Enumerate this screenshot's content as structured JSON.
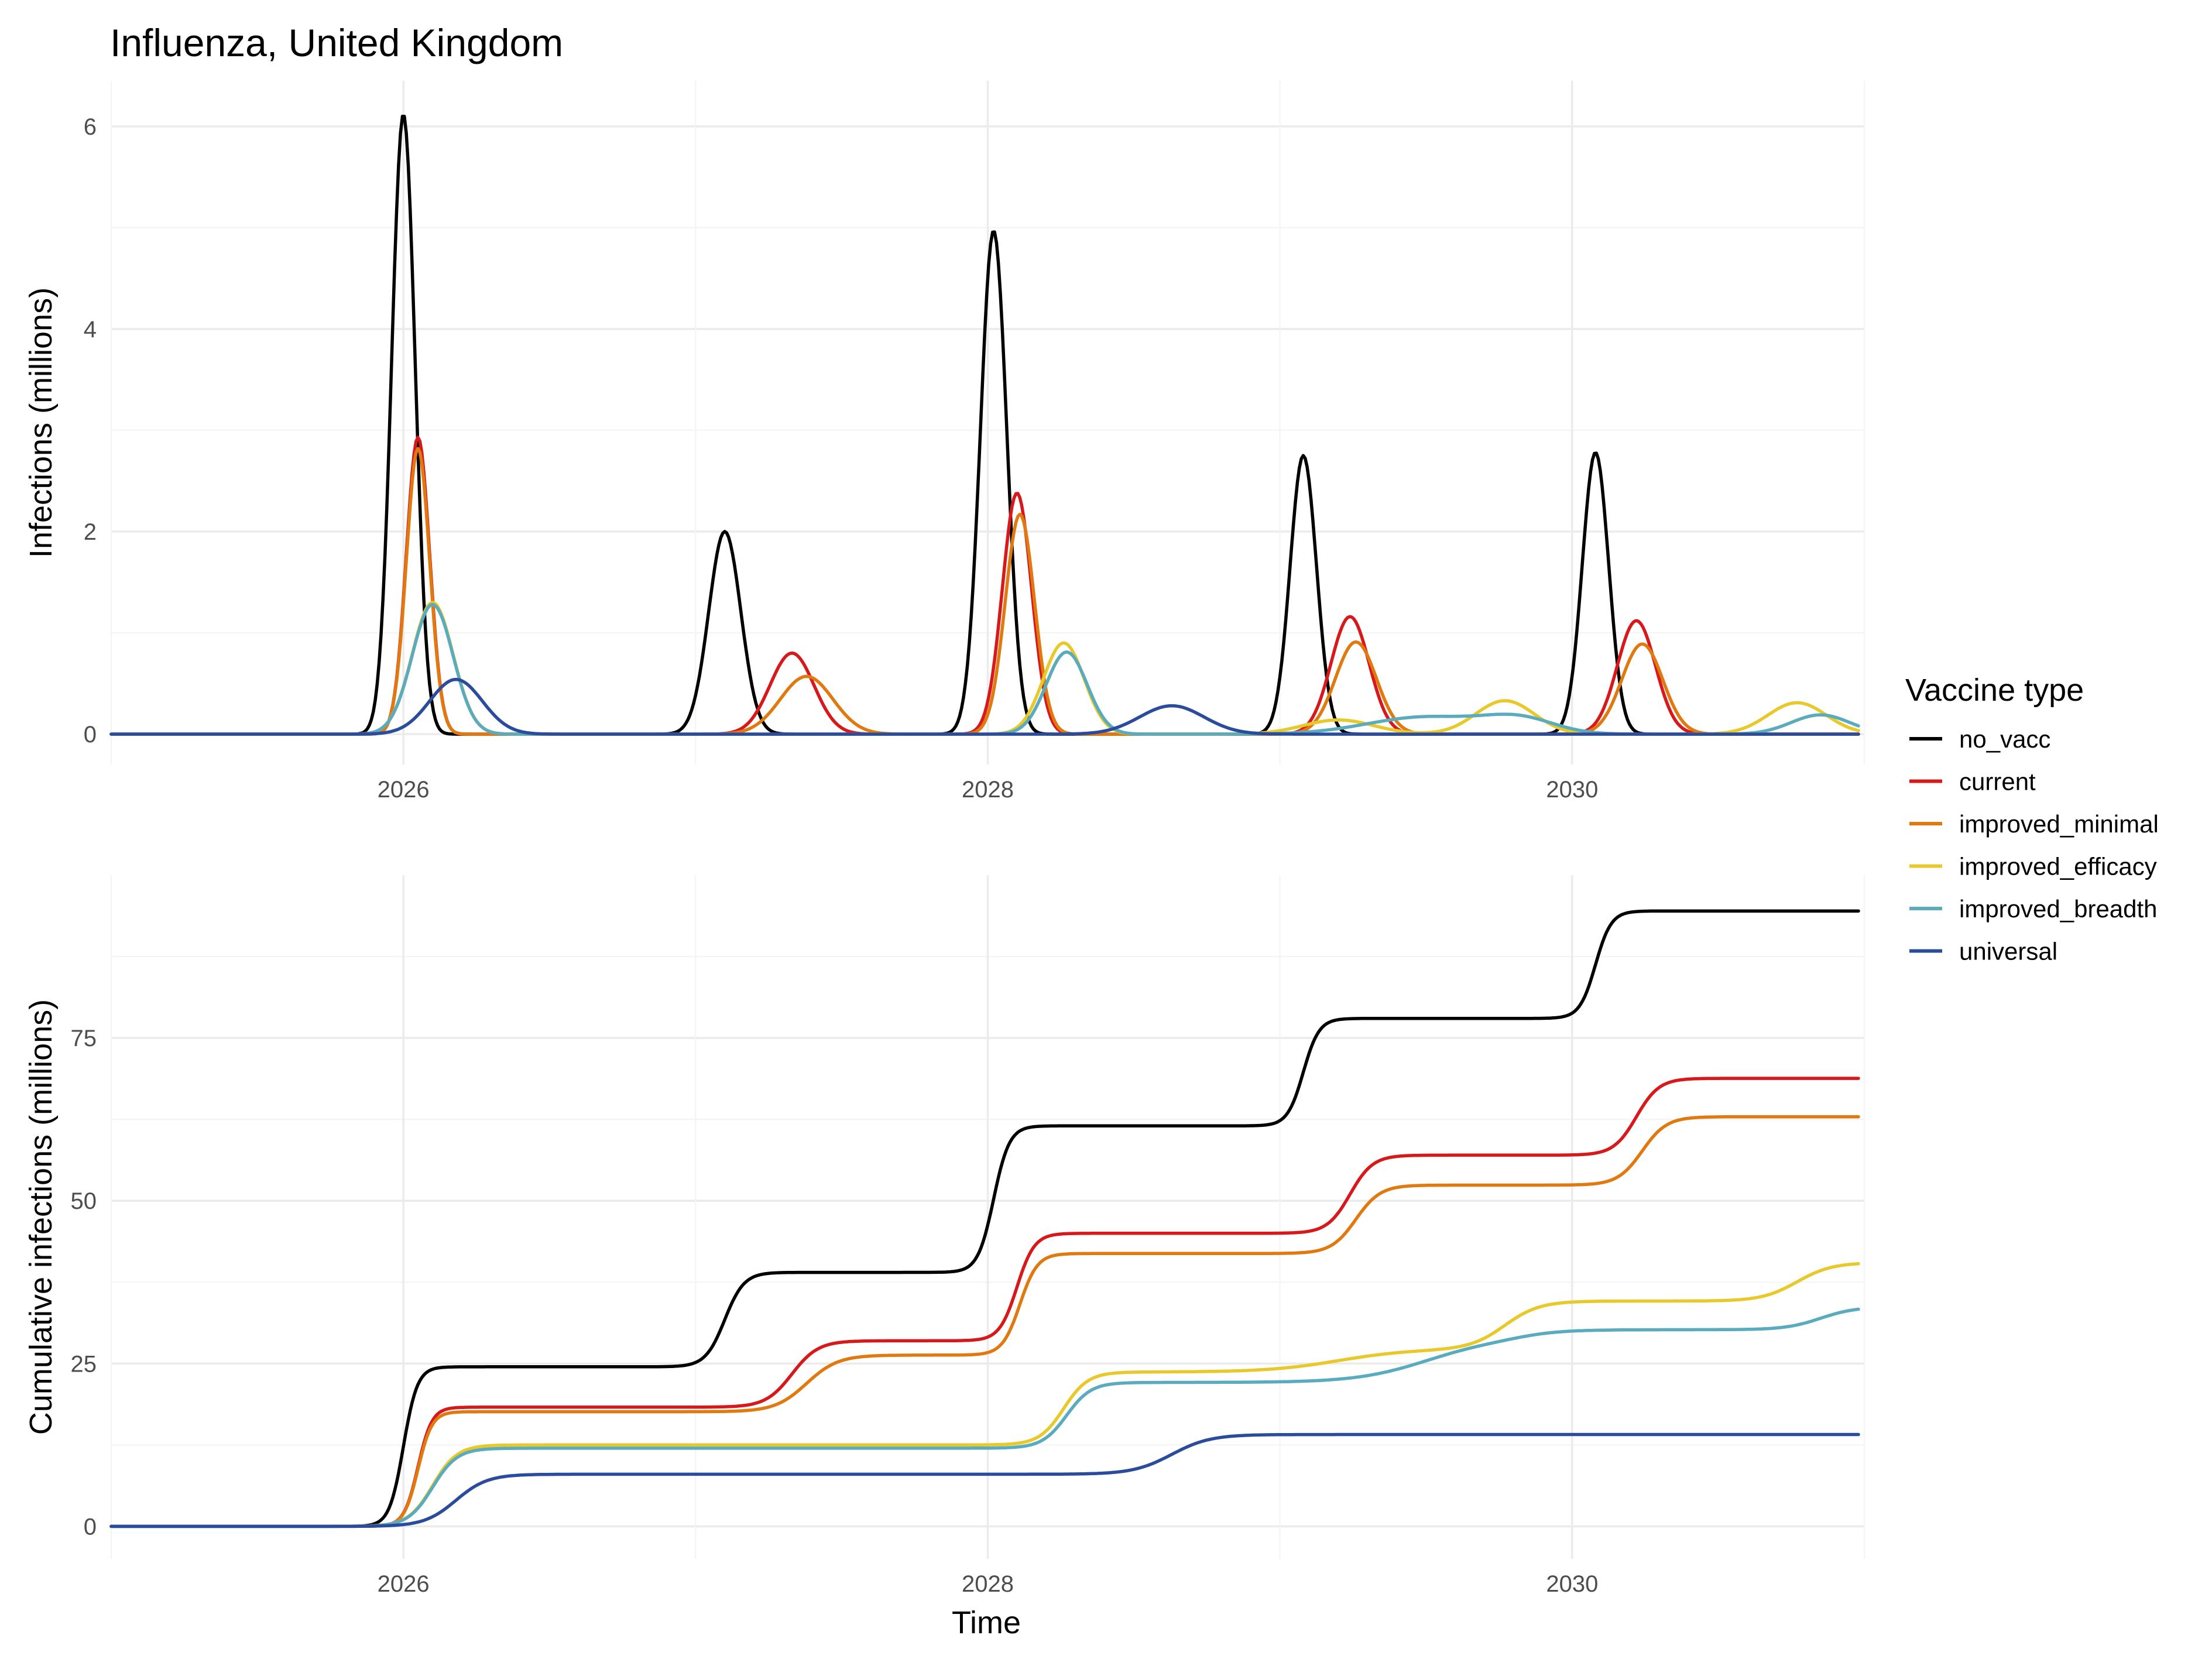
{
  "chart_data": {
    "type": "line",
    "title": "Influenza, United Kingdom",
    "xlabel": "Time",
    "legend": {
      "title": "Vaccine type",
      "position": "right"
    },
    "series_styles": [
      {
        "name": "no_vacc",
        "color": "#000000"
      },
      {
        "name": "current",
        "color": "#d7191c"
      },
      {
        "name": "improved_minimal",
        "color": "#e07a10"
      },
      {
        "name": "improved_efficacy",
        "color": "#e8c92c"
      },
      {
        "name": "improved_breadth",
        "color": "#5aabbd"
      },
      {
        "name": "universal",
        "color": "#2b4c9c"
      }
    ],
    "x_ticks": [
      "2026",
      "2028",
      "2030"
    ],
    "xlim": [
      2025.0,
      2031.0
    ],
    "grid": true,
    "panels": [
      {
        "id": "infections",
        "ylabel": "Infections (millions)",
        "ylim": [
          -0.3,
          6.45
        ],
        "y_ticks": [
          0,
          2,
          4,
          6
        ],
        "series": [
          {
            "name": "no_vacc",
            "peaks": [
              {
                "x": 2026.0,
                "height": 6.12,
                "width": 0.04
              },
              {
                "x": 2027.1,
                "height": 2.0,
                "width": 0.055
              },
              {
                "x": 2028.02,
                "height": 4.97,
                "width": 0.045
              },
              {
                "x": 2029.08,
                "height": 2.75,
                "width": 0.045
              },
              {
                "x": 2030.08,
                "height": 2.78,
                "width": 0.045
              }
            ]
          },
          {
            "name": "current",
            "peaks": [
              {
                "x": 2026.05,
                "height": 2.93,
                "width": 0.04
              },
              {
                "x": 2027.33,
                "height": 0.8,
                "width": 0.075
              },
              {
                "x": 2028.1,
                "height": 2.38,
                "width": 0.05
              },
              {
                "x": 2029.24,
                "height": 1.16,
                "width": 0.065
              },
              {
                "x": 2030.22,
                "height": 1.12,
                "width": 0.065
              }
            ]
          },
          {
            "name": "improved_minimal",
            "peaks": [
              {
                "x": 2026.05,
                "height": 2.82,
                "width": 0.04
              },
              {
                "x": 2027.38,
                "height": 0.57,
                "width": 0.09
              },
              {
                "x": 2028.11,
                "height": 2.17,
                "width": 0.05
              },
              {
                "x": 2029.26,
                "height": 0.91,
                "width": 0.07
              },
              {
                "x": 2030.24,
                "height": 0.89,
                "width": 0.07
              }
            ]
          },
          {
            "name": "improved_efficacy",
            "peaks": [
              {
                "x": 2026.1,
                "height": 1.3,
                "width": 0.07
              },
              {
                "x": 2028.26,
                "height": 0.9,
                "width": 0.07
              },
              {
                "x": 2029.2,
                "height": 0.14,
                "width": 0.12
              },
              {
                "x": 2029.77,
                "height": 0.33,
                "width": 0.1
              },
              {
                "x": 2030.77,
                "height": 0.31,
                "width": 0.1
              }
            ]
          },
          {
            "name": "improved_breadth",
            "peaks": [
              {
                "x": 2026.1,
                "height": 1.28,
                "width": 0.07
              },
              {
                "x": 2028.27,
                "height": 0.81,
                "width": 0.07
              },
              {
                "x": 2029.5,
                "height": 0.17,
                "width": 0.2
              },
              {
                "x": 2029.82,
                "height": 0.14,
                "width": 0.12
              },
              {
                "x": 2030.85,
                "height": 0.19,
                "width": 0.1
              }
            ]
          },
          {
            "name": "universal",
            "peaks": [
              {
                "x": 2026.18,
                "height": 0.54,
                "width": 0.09
              },
              {
                "x": 2028.63,
                "height": 0.28,
                "width": 0.11
              }
            ]
          }
        ]
      },
      {
        "id": "cumulative",
        "ylabel": "Cumulative infections (millions)",
        "ylim": [
          -5,
          100
        ],
        "y_ticks": [
          0,
          25,
          50,
          75
        ],
        "series": [
          {
            "name": "no_vacc",
            "steps": [
              {
                "x": 2026.0,
                "rise": 24.5,
                "width": 0.04
              },
              {
                "x": 2027.1,
                "rise": 14.5,
                "width": 0.055
              },
              {
                "x": 2028.02,
                "rise": 22.5,
                "width": 0.045
              },
              {
                "x": 2029.08,
                "rise": 16.5,
                "width": 0.045
              },
              {
                "x": 2030.08,
                "rise": 16.5,
                "width": 0.045
              }
            ]
          },
          {
            "name": "current",
            "steps": [
              {
                "x": 2026.05,
                "rise": 18.3,
                "width": 0.04
              },
              {
                "x": 2027.33,
                "rise": 10.2,
                "width": 0.075
              },
              {
                "x": 2028.1,
                "rise": 16.5,
                "width": 0.05
              },
              {
                "x": 2029.24,
                "rise": 12.0,
                "width": 0.065
              },
              {
                "x": 2030.22,
                "rise": 11.8,
                "width": 0.065
              }
            ]
          },
          {
            "name": "improved_minimal",
            "steps": [
              {
                "x": 2026.05,
                "rise": 17.6,
                "width": 0.04
              },
              {
                "x": 2027.38,
                "rise": 8.7,
                "width": 0.09
              },
              {
                "x": 2028.11,
                "rise": 15.6,
                "width": 0.05
              },
              {
                "x": 2029.26,
                "rise": 10.5,
                "width": 0.07
              },
              {
                "x": 2030.24,
                "rise": 10.5,
                "width": 0.07
              }
            ]
          },
          {
            "name": "improved_efficacy",
            "steps": [
              {
                "x": 2026.1,
                "rise": 12.5,
                "width": 0.07
              },
              {
                "x": 2028.26,
                "rise": 11.2,
                "width": 0.07
              },
              {
                "x": 2029.2,
                "rise": 3.5,
                "width": 0.2
              },
              {
                "x": 2029.77,
                "rise": 7.4,
                "width": 0.1
              },
              {
                "x": 2030.77,
                "rise": 5.9,
                "width": 0.1
              }
            ]
          },
          {
            "name": "improved_breadth",
            "steps": [
              {
                "x": 2026.1,
                "rise": 12.0,
                "width": 0.07
              },
              {
                "x": 2028.27,
                "rise": 10.1,
                "width": 0.07
              },
              {
                "x": 2029.5,
                "rise": 6.6,
                "width": 0.2
              },
              {
                "x": 2029.82,
                "rise": 1.5,
                "width": 0.12
              },
              {
                "x": 2030.85,
                "rise": 3.5,
                "width": 0.1
              }
            ]
          },
          {
            "name": "universal",
            "steps": [
              {
                "x": 2026.18,
                "rise": 8.0,
                "width": 0.09
              },
              {
                "x": 2028.63,
                "rise": 6.1,
                "width": 0.11
              }
            ]
          }
        ]
      }
    ]
  }
}
